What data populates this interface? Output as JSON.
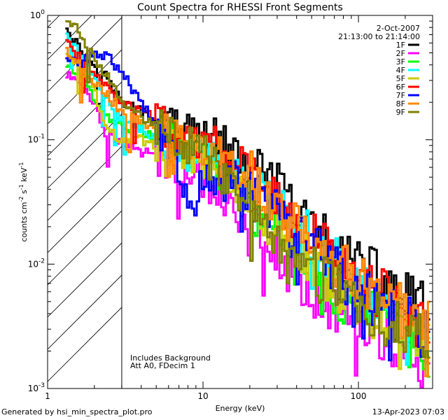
{
  "chart_data": {
    "type": "line",
    "title": "Count Spectra for RHESSI Front Segments",
    "xlabel": "Energy (keV)",
    "ylabel_parts": [
      "counts cm",
      "-2",
      " s",
      "-1",
      " keV",
      "-1"
    ],
    "xscale": "log",
    "yscale": "log",
    "xlim": [
      1.0,
      300.0
    ],
    "ylim": [
      0.001,
      1.0
    ],
    "x_tick_labels": [
      {
        "value": 1,
        "label": "1"
      },
      {
        "value": 10,
        "label": "10"
      },
      {
        "value": 100,
        "label": "100"
      }
    ],
    "y_tick_labels": [
      {
        "value": 1,
        "base": "10",
        "exp": "0"
      },
      {
        "value": 0.1,
        "base": "10",
        "exp": "-1"
      },
      {
        "value": 0.01,
        "base": "10",
        "exp": "-2"
      },
      {
        "value": 0.001,
        "base": "10",
        "exp": "-3"
      }
    ],
    "hatched_region_xmax": 3.0,
    "date_text": "2-Oct-2007",
    "time_text": "21:13:00 to 21:14:00",
    "annotations": [
      "Includes Background",
      "Att A0, FDecim 1"
    ],
    "legend_position": "top-right",
    "series": [
      {
        "name": "1F",
        "color": "#000000",
        "points": [
          [
            1.3,
            0.85
          ],
          [
            1.6,
            0.55
          ],
          [
            1.9,
            0.42
          ],
          [
            2.3,
            0.35
          ],
          [
            3.0,
            0.2
          ],
          [
            4,
            0.17
          ],
          [
            5,
            0.14
          ],
          [
            6,
            0.13
          ],
          [
            8,
            0.11
          ],
          [
            10,
            0.12
          ],
          [
            12,
            0.11
          ],
          [
            15,
            0.08
          ],
          [
            20,
            0.06
          ],
          [
            25,
            0.045
          ],
          [
            30,
            0.04
          ],
          [
            40,
            0.025
          ],
          [
            50,
            0.02
          ],
          [
            60,
            0.016
          ],
          [
            80,
            0.012
          ],
          [
            100,
            0.01
          ],
          [
            130,
            0.008
          ],
          [
            160,
            0.0065
          ],
          [
            200,
            0.0055
          ],
          [
            250,
            0.0045
          ],
          [
            290,
            0.004
          ]
        ]
      },
      {
        "name": "2F",
        "color": "#ff00ff",
        "points": [
          [
            1.3,
            0.33
          ],
          [
            1.6,
            0.3
          ],
          [
            2.0,
            0.2
          ],
          [
            2.4,
            0.11
          ],
          [
            3.0,
            0.095
          ],
          [
            4,
            0.08
          ],
          [
            5,
            0.075
          ],
          [
            6,
            0.065
          ],
          [
            8,
            0.055
          ],
          [
            10,
            0.05
          ],
          [
            12,
            0.04
          ],
          [
            15,
            0.03
          ],
          [
            20,
            0.022
          ],
          [
            25,
            0.016
          ],
          [
            30,
            0.012
          ],
          [
            40,
            0.008
          ],
          [
            50,
            0.006
          ],
          [
            60,
            0.005
          ],
          [
            80,
            0.004
          ],
          [
            100,
            0.0035
          ],
          [
            130,
            0.003
          ],
          [
            160,
            0.0025
          ],
          [
            200,
            0.0018
          ],
          [
            250,
            0.0015
          ],
          [
            290,
            0.0012
          ]
        ]
      },
      {
        "name": "3F",
        "color": "#00ff00",
        "points": [
          [
            1.3,
            0.4
          ],
          [
            1.6,
            0.35
          ],
          [
            2.0,
            0.22
          ],
          [
            2.5,
            0.15
          ],
          [
            3.0,
            0.13
          ],
          [
            4,
            0.12
          ],
          [
            5,
            0.1
          ],
          [
            6,
            0.1
          ],
          [
            8,
            0.085
          ],
          [
            10,
            0.08
          ],
          [
            12,
            0.06
          ],
          [
            15,
            0.045
          ],
          [
            20,
            0.03
          ],
          [
            25,
            0.022
          ],
          [
            30,
            0.017
          ],
          [
            40,
            0.011
          ],
          [
            50,
            0.008
          ],
          [
            60,
            0.006
          ],
          [
            80,
            0.005
          ],
          [
            100,
            0.0045
          ],
          [
            130,
            0.0035
          ],
          [
            160,
            0.003
          ],
          [
            200,
            0.0025
          ],
          [
            250,
            0.002
          ],
          [
            290,
            0.0018
          ]
        ]
      },
      {
        "name": "4F",
        "color": "#00ffff",
        "points": [
          [
            1.3,
            0.75
          ],
          [
            1.6,
            0.5
          ],
          [
            2.0,
            0.32
          ],
          [
            2.5,
            0.2
          ],
          [
            3.0,
            0.15
          ],
          [
            4,
            0.12
          ],
          [
            5,
            0.1
          ],
          [
            6,
            0.09
          ],
          [
            8,
            0.08
          ],
          [
            10,
            0.09
          ],
          [
            12,
            0.09
          ],
          [
            15,
            0.06
          ],
          [
            20,
            0.045
          ],
          [
            25,
            0.035
          ],
          [
            30,
            0.03
          ],
          [
            40,
            0.02
          ],
          [
            50,
            0.015
          ],
          [
            60,
            0.012
          ],
          [
            80,
            0.009
          ],
          [
            100,
            0.007
          ],
          [
            130,
            0.0055
          ],
          [
            160,
            0.0045
          ],
          [
            200,
            0.0035
          ],
          [
            250,
            0.003
          ],
          [
            290,
            0.0025
          ]
        ]
      },
      {
        "name": "5F",
        "color": "#cccc00",
        "points": [
          [
            1.3,
            0.5
          ],
          [
            1.6,
            0.42
          ],
          [
            2.0,
            0.25
          ],
          [
            2.4,
            0.12
          ],
          [
            3.0,
            0.1
          ],
          [
            4,
            0.1
          ],
          [
            5,
            0.09
          ],
          [
            6,
            0.09
          ],
          [
            8,
            0.08
          ],
          [
            10,
            0.07
          ],
          [
            12,
            0.06
          ],
          [
            15,
            0.045
          ],
          [
            20,
            0.035
          ],
          [
            25,
            0.025
          ],
          [
            30,
            0.02
          ],
          [
            40,
            0.014
          ],
          [
            50,
            0.01
          ],
          [
            60,
            0.008
          ],
          [
            80,
            0.006
          ],
          [
            100,
            0.005
          ],
          [
            130,
            0.004
          ],
          [
            160,
            0.0035
          ],
          [
            200,
            0.003
          ],
          [
            250,
            0.0025
          ],
          [
            290,
            0.0022
          ]
        ]
      },
      {
        "name": "6F",
        "color": "#ff0000",
        "points": [
          [
            1.3,
            0.65
          ],
          [
            1.6,
            0.45
          ],
          [
            2.0,
            0.35
          ],
          [
            2.5,
            0.25
          ],
          [
            3.0,
            0.2
          ],
          [
            4,
            0.17
          ],
          [
            5,
            0.15
          ],
          [
            6,
            0.12
          ],
          [
            8,
            0.11
          ],
          [
            10,
            0.1
          ],
          [
            12,
            0.1
          ],
          [
            15,
            0.07
          ],
          [
            20,
            0.055
          ],
          [
            25,
            0.04
          ],
          [
            30,
            0.035
          ],
          [
            40,
            0.025
          ],
          [
            50,
            0.018
          ],
          [
            60,
            0.015
          ],
          [
            80,
            0.011
          ],
          [
            100,
            0.008
          ],
          [
            130,
            0.006
          ],
          [
            160,
            0.005
          ],
          [
            200,
            0.004
          ],
          [
            250,
            0.0035
          ],
          [
            290,
            0.003
          ]
        ]
      },
      {
        "name": "7F",
        "color": "#0000ff",
        "points": [
          [
            1.3,
            0.45
          ],
          [
            1.6,
            0.4
          ],
          [
            2.0,
            0.5
          ],
          [
            2.5,
            0.45
          ],
          [
            3.0,
            0.35
          ],
          [
            4,
            0.2
          ],
          [
            5,
            0.13
          ],
          [
            6,
            0.09
          ],
          [
            7,
            0.06
          ],
          [
            8,
            0.04
          ],
          [
            9,
            0.035
          ],
          [
            10,
            0.045
          ],
          [
            12,
            0.045
          ],
          [
            15,
            0.06
          ],
          [
            20,
            0.035
          ],
          [
            25,
            0.03
          ],
          [
            30,
            0.025
          ],
          [
            40,
            0.018
          ],
          [
            50,
            0.014
          ],
          [
            60,
            0.011
          ],
          [
            80,
            0.008
          ],
          [
            100,
            0.006
          ],
          [
            130,
            0.005
          ],
          [
            160,
            0.004
          ],
          [
            200,
            0.0035
          ],
          [
            250,
            0.003
          ],
          [
            290,
            0.0025
          ]
        ]
      },
      {
        "name": "8F",
        "color": "#ff8800",
        "points": [
          [
            1.3,
            0.55
          ],
          [
            1.6,
            0.4
          ],
          [
            2.0,
            0.3
          ],
          [
            2.5,
            0.22
          ],
          [
            3.0,
            0.17
          ],
          [
            4,
            0.14
          ],
          [
            5,
            0.12
          ],
          [
            6,
            0.11
          ],
          [
            8,
            0.1
          ],
          [
            10,
            0.09
          ],
          [
            12,
            0.08
          ],
          [
            15,
            0.06
          ],
          [
            20,
            0.05
          ],
          [
            25,
            0.04
          ],
          [
            30,
            0.03
          ],
          [
            40,
            0.022
          ],
          [
            50,
            0.017
          ],
          [
            60,
            0.014
          ],
          [
            80,
            0.01
          ],
          [
            100,
            0.008
          ],
          [
            130,
            0.006
          ],
          [
            160,
            0.005
          ],
          [
            200,
            0.004
          ],
          [
            250,
            0.0035
          ],
          [
            290,
            0.003
          ]
        ]
      },
      {
        "name": "9F",
        "color": "#808000",
        "points": [
          [
            1.3,
            0.88
          ],
          [
            1.6,
            0.75
          ],
          [
            2.0,
            0.45
          ],
          [
            2.5,
            0.3
          ],
          [
            3.0,
            0.2
          ],
          [
            4,
            0.15
          ],
          [
            5,
            0.13
          ],
          [
            6,
            0.11
          ],
          [
            8,
            0.1
          ],
          [
            10,
            0.08
          ],
          [
            12,
            0.06
          ],
          [
            15,
            0.045
          ],
          [
            20,
            0.032
          ],
          [
            25,
            0.022
          ],
          [
            30,
            0.018
          ],
          [
            40,
            0.013
          ],
          [
            50,
            0.009
          ],
          [
            60,
            0.007
          ],
          [
            80,
            0.006
          ],
          [
            100,
            0.005
          ],
          [
            130,
            0.004
          ],
          [
            160,
            0.0035
          ],
          [
            200,
            0.003
          ],
          [
            250,
            0.0025
          ],
          [
            290,
            0.002
          ]
        ]
      }
    ]
  },
  "footer": {
    "generated_by": "Generated by hsi_min_spectra_plot.pro",
    "timestamp": "13-Apr-2023 07:03"
  }
}
